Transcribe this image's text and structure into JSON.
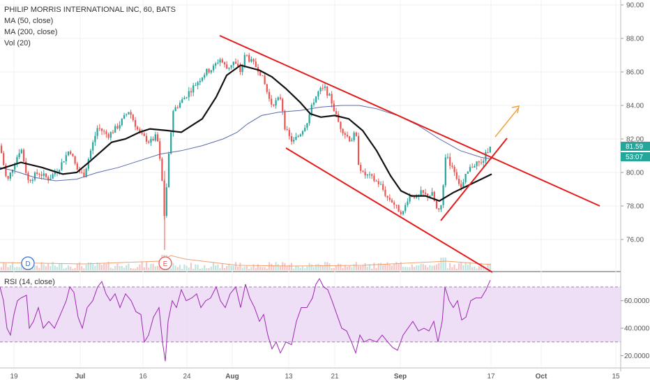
{
  "legend": {
    "title": "PHILIP MORRIS INTERNATIONAL INC, 60, BATS",
    "ma50": "MA (50, close)",
    "ma200": "MA (200, close)",
    "vol": "Vol (20)"
  },
  "rsi_label": "RSI (14, close)",
  "price_tags": {
    "last": "81.59",
    "countdown": "53:07"
  },
  "markers": {
    "dividend": "D",
    "earnings": "E"
  },
  "colors": {
    "up": "#26a69a",
    "down": "#ef5350",
    "ma50": "#111111",
    "ma200": "#5b6aa8",
    "trend": "#e31b1b",
    "arrow": "#f2a23a",
    "rsi": "#9c27b0",
    "rsi_band": "#ead7f5"
  },
  "chart_data": [
    {
      "type": "line",
      "title": "PHILIP MORRIS INTERNATIONAL INC, 60, BATS",
      "y_ticks": [
        "90.00",
        "88.00",
        "86.00",
        "84.00",
        "82.00",
        "80.00",
        "78.00",
        "76.00"
      ],
      "x_ticks": [
        "19",
        "Jul",
        "16",
        "24",
        "Aug",
        "13",
        "21",
        "Sep",
        "17",
        "Oct",
        "15"
      ],
      "ylim": [
        74.0,
        90.3
      ],
      "series": [
        {
          "name": "MA (50, close)"
        },
        {
          "name": "MA (200, close)"
        }
      ],
      "close_path": [
        [
          0,
          81.6
        ],
        [
          10,
          79.4
        ],
        [
          20,
          80.5
        ],
        [
          30,
          81.5
        ],
        [
          40,
          79.5
        ],
        [
          55,
          80.0
        ],
        [
          70,
          79.6
        ],
        [
          85,
          80.3
        ],
        [
          100,
          81.4
        ],
        [
          110,
          80.2
        ],
        [
          120,
          79.8
        ],
        [
          130,
          81.3
        ],
        [
          140,
          82.7
        ],
        [
          155,
          82.2
        ],
        [
          170,
          82.8
        ],
        [
          185,
          83.7
        ],
        [
          200,
          82.3
        ],
        [
          215,
          81.8
        ],
        [
          225,
          82.2
        ],
        [
          232,
          79.7
        ],
        [
          236,
          77.3
        ],
        [
          242,
          81.0
        ],
        [
          248,
          83.7
        ],
        [
          255,
          84.0
        ],
        [
          265,
          84.5
        ],
        [
          275,
          85.0
        ],
        [
          285,
          85.5
        ],
        [
          295,
          86.0
        ],
        [
          305,
          86.2
        ],
        [
          315,
          86.8
        ],
        [
          325,
          86.2
        ],
        [
          335,
          86.6
        ],
        [
          345,
          86.0
        ],
        [
          352,
          87.1
        ],
        [
          358,
          86.7
        ],
        [
          365,
          86.4
        ],
        [
          372,
          86.1
        ],
        [
          380,
          85.2
        ],
        [
          388,
          84.1
        ],
        [
          395,
          84.2
        ],
        [
          403,
          84.5
        ],
        [
          408,
          82.8
        ],
        [
          413,
          82.2
        ],
        [
          420,
          81.8
        ],
        [
          430,
          82.3
        ],
        [
          440,
          83.0
        ],
        [
          450,
          84.3
        ],
        [
          458,
          84.9
        ],
        [
          466,
          85.0
        ],
        [
          474,
          84.4
        ],
        [
          480,
          83.6
        ],
        [
          487,
          82.8
        ],
        [
          495,
          82.3
        ],
        [
          503,
          81.9
        ],
        [
          510,
          82.4
        ],
        [
          514,
          80.6
        ],
        [
          520,
          79.9
        ],
        [
          528,
          79.8
        ],
        [
          535,
          79.6
        ],
        [
          545,
          79.3
        ],
        [
          555,
          78.5
        ],
        [
          562,
          78.3
        ],
        [
          570,
          77.8
        ],
        [
          578,
          77.6
        ],
        [
          585,
          78.5
        ],
        [
          592,
          78.7
        ],
        [
          598,
          78.4
        ],
        [
          604,
          78.8
        ],
        [
          612,
          78.6
        ],
        [
          620,
          78.7
        ],
        [
          628,
          77.5
        ],
        [
          634,
          78.2
        ],
        [
          638,
          81.1
        ],
        [
          644,
          80.6
        ],
        [
          650,
          80.3
        ],
        [
          656,
          79.6
        ],
        [
          662,
          79.0
        ],
        [
          668,
          79.8
        ],
        [
          675,
          80.3
        ],
        [
          683,
          80.6
        ],
        [
          690,
          80.5
        ],
        [
          697,
          81.1
        ],
        [
          703,
          81.7
        ]
      ],
      "ma50_path": [
        [
          0,
          80.2
        ],
        [
          30,
          80.6
        ],
        [
          60,
          80.3
        ],
        [
          90,
          79.9
        ],
        [
          110,
          80.0
        ],
        [
          130,
          80.7
        ],
        [
          160,
          81.8
        ],
        [
          180,
          82.0
        ],
        [
          200,
          82.4
        ],
        [
          215,
          82.6
        ],
        [
          240,
          82.5
        ],
        [
          260,
          82.4
        ],
        [
          290,
          83.2
        ],
        [
          310,
          84.5
        ],
        [
          325,
          85.8
        ],
        [
          345,
          86.4
        ],
        [
          372,
          86.1
        ],
        [
          390,
          85.7
        ],
        [
          410,
          85.0
        ],
        [
          430,
          84.2
        ],
        [
          445,
          83.5
        ],
        [
          460,
          83.3
        ],
        [
          480,
          83.4
        ],
        [
          500,
          83.2
        ],
        [
          520,
          82.5
        ],
        [
          540,
          81.3
        ],
        [
          560,
          79.8
        ],
        [
          575,
          78.9
        ],
        [
          590,
          78.6
        ],
        [
          610,
          78.6
        ],
        [
          630,
          78.3
        ],
        [
          650,
          78.8
        ],
        [
          670,
          79.2
        ],
        [
          690,
          79.6
        ],
        [
          705,
          79.9
        ]
      ],
      "ma200_path": [
        [
          0,
          80.3
        ],
        [
          20,
          80.1
        ],
        [
          50,
          79.7
        ],
        [
          80,
          79.5
        ],
        [
          110,
          79.6
        ],
        [
          140,
          80.0
        ],
        [
          170,
          80.3
        ],
        [
          200,
          80.7
        ],
        [
          230,
          81.1
        ],
        [
          260,
          81.3
        ],
        [
          290,
          81.6
        ],
        [
          320,
          82.0
        ],
        [
          340,
          82.4
        ],
        [
          355,
          82.9
        ],
        [
          375,
          83.4
        ],
        [
          400,
          83.6
        ],
        [
          430,
          83.7
        ],
        [
          460,
          83.9
        ],
        [
          490,
          84.0
        ],
        [
          515,
          84.0
        ],
        [
          540,
          83.8
        ],
        [
          570,
          83.4
        ],
        [
          600,
          82.8
        ],
        [
          630,
          82.0
        ],
        [
          660,
          81.3
        ],
        [
          690,
          80.9
        ],
        [
          705,
          80.8
        ]
      ]
    },
    {
      "type": "line",
      "title": "RSI (14, close)",
      "y_ticks": [
        "60.0000",
        "40.0000",
        "20.0000"
      ],
      "ylim": [
        14,
        78
      ],
      "series": [
        {
          "name": "RSI (14, close)"
        }
      ],
      "bands": [
        30,
        70
      ],
      "rsi_path": [
        [
          0,
          70
        ],
        [
          5,
          60
        ],
        [
          10,
          40
        ],
        [
          15,
          35
        ],
        [
          20,
          50
        ],
        [
          25,
          60
        ],
        [
          30,
          62
        ],
        [
          38,
          64
        ],
        [
          42,
          40
        ],
        [
          48,
          45
        ],
        [
          55,
          55
        ],
        [
          62,
          40
        ],
        [
          70,
          45
        ],
        [
          78,
          40
        ],
        [
          85,
          48
        ],
        [
          95,
          60
        ],
        [
          100,
          70
        ],
        [
          106,
          66
        ],
        [
          112,
          48
        ],
        [
          118,
          40
        ],
        [
          125,
          55
        ],
        [
          133,
          60
        ],
        [
          140,
          70
        ],
        [
          146,
          74
        ],
        [
          152,
          65
        ],
        [
          158,
          60
        ],
        [
          165,
          65
        ],
        [
          172,
          55
        ],
        [
          180,
          65
        ],
        [
          188,
          60
        ],
        [
          195,
          52
        ],
        [
          202,
          50
        ],
        [
          207,
          30
        ],
        [
          213,
          35
        ],
        [
          220,
          48
        ],
        [
          228,
          55
        ],
        [
          233,
          30
        ],
        [
          237,
          16
        ],
        [
          241,
          45
        ],
        [
          247,
          60
        ],
        [
          253,
          55
        ],
        [
          260,
          68
        ],
        [
          267,
          60
        ],
        [
          275,
          62
        ],
        [
          282,
          65
        ],
        [
          288,
          55
        ],
        [
          295,
          60
        ],
        [
          302,
          62
        ],
        [
          310,
          70
        ],
        [
          316,
          60
        ],
        [
          323,
          55
        ],
        [
          330,
          65
        ],
        [
          338,
          70
        ],
        [
          345,
          55
        ],
        [
          352,
          72
        ],
        [
          358,
          62
        ],
        [
          365,
          55
        ],
        [
          372,
          45
        ],
        [
          378,
          50
        ],
        [
          384,
          35
        ],
        [
          390,
          25
        ],
        [
          396,
          30
        ],
        [
          402,
          22
        ],
        [
          410,
          30
        ],
        [
          418,
          28
        ],
        [
          425,
          45
        ],
        [
          432,
          55
        ],
        [
          440,
          55
        ],
        [
          448,
          62
        ],
        [
          453,
          72
        ],
        [
          458,
          76
        ],
        [
          464,
          70
        ],
        [
          470,
          68
        ],
        [
          476,
          60
        ],
        [
          483,
          50
        ],
        [
          490,
          40
        ],
        [
          497,
          38
        ],
        [
          504,
          30
        ],
        [
          510,
          22
        ],
        [
          516,
          35
        ],
        [
          522,
          30
        ],
        [
          530,
          32
        ],
        [
          540,
          30
        ],
        [
          548,
          35
        ],
        [
          556,
          30
        ],
        [
          563,
          26
        ],
        [
          570,
          24
        ],
        [
          578,
          35
        ],
        [
          585,
          40
        ],
        [
          592,
          45
        ],
        [
          600,
          38
        ],
        [
          608,
          40
        ],
        [
          615,
          38
        ],
        [
          622,
          45
        ],
        [
          628,
          30
        ],
        [
          634,
          45
        ],
        [
          638,
          70
        ],
        [
          644,
          60
        ],
        [
          650,
          55
        ],
        [
          656,
          60
        ],
        [
          662,
          46
        ],
        [
          668,
          48
        ],
        [
          675,
          60
        ],
        [
          682,
          62
        ],
        [
          690,
          62
        ],
        [
          697,
          68
        ],
        [
          703,
          75
        ]
      ]
    }
  ]
}
